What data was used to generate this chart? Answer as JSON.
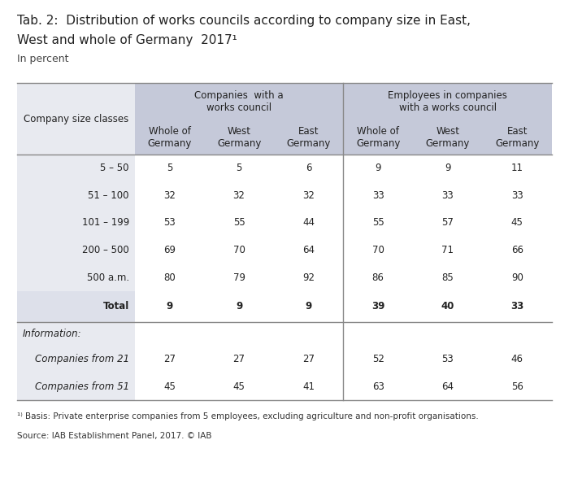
{
  "title_line1": "Tab. 2:  Distribution of works councils according to company size in East,",
  "title_line2": "West and whole of Germany  2017¹",
  "subtitle": "In percent",
  "header_group1": "Companies  with a\nworks council",
  "header_group2": "Employees in companies\nwith a works council",
  "col_header_left": "Company size classes",
  "sub_headers": [
    "Whole of\nGermany",
    "West\nGermany",
    "East\nGermany",
    "Whole of\nGermany",
    "West\nGermany",
    "East\nGermany"
  ],
  "row_labels": [
    "5 – 50",
    "51 – 100",
    "101 – 199",
    "200 – 500",
    "500 a.m.",
    "Total"
  ],
  "data_rows": [
    [
      5,
      5,
      6,
      9,
      9,
      11
    ],
    [
      32,
      32,
      32,
      33,
      33,
      33
    ],
    [
      53,
      55,
      44,
      55,
      57,
      45
    ],
    [
      69,
      70,
      64,
      70,
      71,
      66
    ],
    [
      80,
      79,
      92,
      86,
      85,
      90
    ],
    [
      9,
      9,
      9,
      39,
      40,
      33
    ]
  ],
  "info_label": "Information:",
  "info_rows": [
    [
      "Companies from 21",
      [
        27,
        27,
        27,
        52,
        53,
        46
      ]
    ],
    [
      "Companies from 51",
      [
        45,
        45,
        41,
        63,
        64,
        56
      ]
    ]
  ],
  "footnote": "¹⁾ Basis: Private enterprise companies from 5 employees, excluding agriculture and non-profit organisations.",
  "source": "Source: IAB Establishment Panel, 2017. © IAB",
  "header_bg": "#c5c9d9",
  "row_bg_light": "#e8eaf0",
  "row_bg_white": "#ffffff",
  "total_row_bg": "#dde0ea",
  "info_bg": "#f0f1f5",
  "background": "#ffffff"
}
